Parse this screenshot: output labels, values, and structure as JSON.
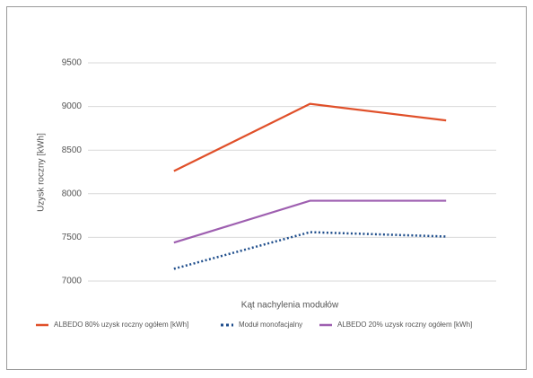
{
  "chart_data": {
    "type": "line",
    "y_label": "Uzysk roczny [kWh]",
    "x_label": "Kąt nachylenia modułów",
    "categories": [
      null,
      null,
      null
    ],
    "series": [
      {
        "name": "ALBEDO 80% uzysk roczny ogółem [kWh]",
        "color": "#e0502a",
        "style": "solid",
        "values": [
          8260,
          9030,
          8840
        ]
      },
      {
        "name": "Moduł monofacjalny",
        "color": "#1f4e8c",
        "style": "dotted",
        "values": [
          7140,
          7560,
          7510
        ]
      },
      {
        "name": "ALBEDO 20% uzysk roczny ogółem [kWh]",
        "color": "#9e5fb0",
        "style": "solid",
        "values": [
          7440,
          7920,
          7920
        ]
      }
    ],
    "ylim": [
      7000,
      9500
    ],
    "yticks": [
      7000,
      7500,
      8000,
      8500,
      9000,
      9500
    ],
    "grid": true,
    "legend": "bottom"
  }
}
